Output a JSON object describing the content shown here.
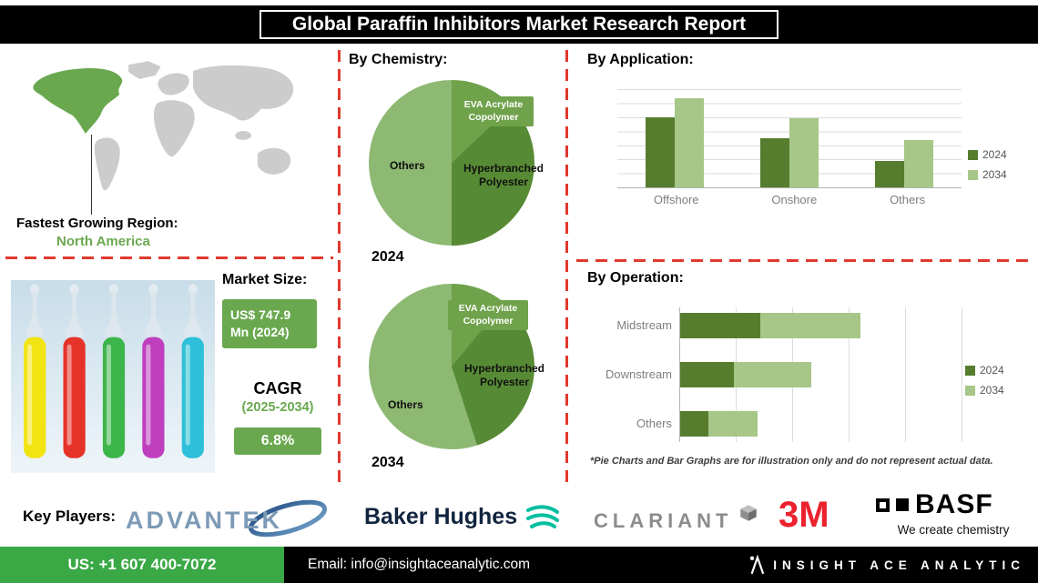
{
  "header": {
    "title": "Global Paraffin Inhibitors Market Research Report"
  },
  "region": {
    "label": "Fastest Growing Region:",
    "value": "North America"
  },
  "market": {
    "size_label": "Market Size:",
    "size_value": "US$ 747.9 Mn (2024)",
    "cagr_label": "CAGR",
    "cagr_period": "(2025-2034)",
    "cagr_value": "6.8%"
  },
  "sections": {
    "chemistry": "By Chemistry:",
    "application": "By  Application:",
    "operation": "By Operation:"
  },
  "footnote": "*Pie Charts and Bar Graphs are for illustration only and do not represent actual data.",
  "key_players": {
    "label": "Key Players:",
    "logos": [
      "ADVANTEK",
      "Baker Hughes",
      "CLARIANT",
      "3M",
      "BASF"
    ],
    "basf_tagline": "We create chemistry"
  },
  "contact": {
    "phone": "US: +1 607 400-7072",
    "email": "Email: info@insightaceanalytic.com",
    "company": "INSIGHT ACE ANALYTIC"
  },
  "colors": {
    "dark_green": "#567d2e",
    "light_green": "#a6c787",
    "accent_green": "#6aa84f",
    "pie_eva": "#6fa24b",
    "pie_hyper": "#578a34",
    "pie_others": "#8db973",
    "dashed_red": "#e0392e",
    "bottom_green": "#39a845"
  },
  "chart_data": [
    {
      "type": "pie",
      "title": "By Chemistry 2024",
      "year_label": "2024",
      "labels": [
        "EVA Acrylate Copolymer",
        "Hyperbranched Polyester",
        "Others"
      ],
      "values": [
        13,
        37,
        50
      ],
      "colors": [
        "#6fa24b",
        "#578a34",
        "#8db973"
      ],
      "note": "illustrative proportions"
    },
    {
      "type": "pie",
      "title": "By Chemistry 2034",
      "year_label": "2034",
      "labels": [
        "EVA Acrylate Copolymer",
        "Hyperbranched Polyester",
        "Others"
      ],
      "values": [
        11,
        34,
        55
      ],
      "colors": [
        "#6fa24b",
        "#578a34",
        "#8db973"
      ],
      "note": "illustrative proportions"
    },
    {
      "type": "bar",
      "title": "By Application",
      "categories": [
        "Offshore",
        "Onshore",
        "Others"
      ],
      "series": [
        {
          "name": "2024",
          "color": "#567d2e",
          "values": [
            63,
            44,
            24
          ]
        },
        {
          "name": "2034",
          "color": "#a6c787",
          "values": [
            80,
            62,
            43
          ]
        }
      ],
      "ylim": [
        0,
        100
      ],
      "grid": true,
      "legend_position": "right",
      "note": "illustrative values, no axis labels shown"
    },
    {
      "type": "bar-horizontal-stacked",
      "title": "By Operation",
      "categories": [
        "Midstream",
        "Downstream",
        "Others"
      ],
      "series": [
        {
          "name": "2024",
          "color": "#567d2e",
          "values": [
            31,
            21,
            11
          ]
        },
        {
          "name": "2034",
          "color": "#a6c787",
          "values": [
            39,
            30,
            19
          ]
        }
      ],
      "xlim": [
        0,
        110
      ],
      "grid": true,
      "legend_position": "right",
      "note": "illustrative values, no axis labels shown"
    }
  ]
}
